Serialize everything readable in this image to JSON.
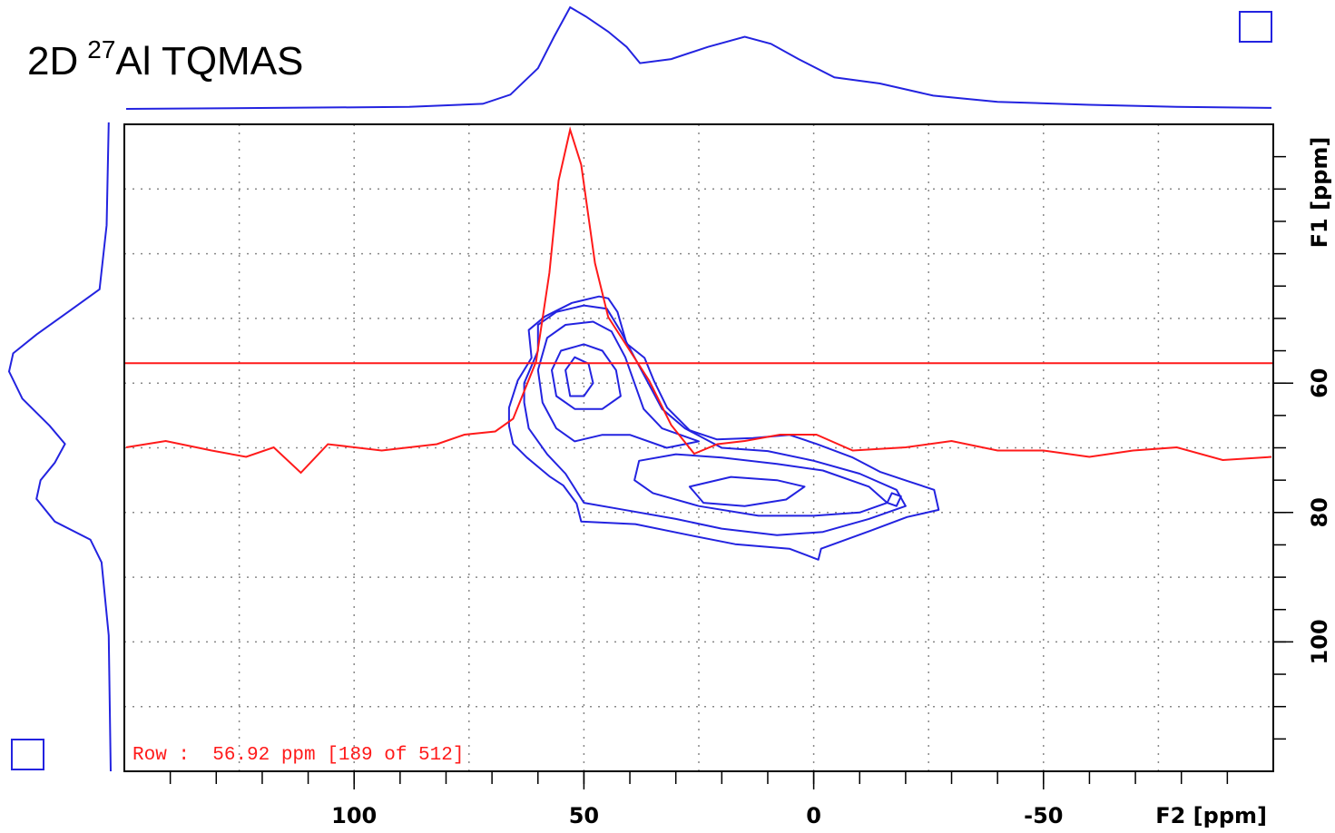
{
  "chart_data": {
    "type": "contour",
    "title": {
      "text1": "2D",
      "sup": "27",
      "text2": "Al TQMAS"
    },
    "x_label": "F2 [ppm]",
    "y_label": "F1 [ppm]",
    "xlim": [
      150,
      -100
    ],
    "ylim": [
      20,
      120
    ],
    "xticks": [
      100,
      50,
      0,
      -50
    ],
    "yticks": [
      60,
      80,
      100
    ],
    "xgrid": [
      125,
      75,
      25,
      -25,
      -75
    ],
    "ygrid": [
      30,
      40,
      50,
      70,
      90,
      110
    ],
    "xminor": 10,
    "yminor": 5,
    "grid": true,
    "contour_color": "#2323e0",
    "projection_color": "#2323e0",
    "row_color": "#ff1a1a",
    "row_ppm": 56.92,
    "row_label": "Row :  56.92 ppm [189 of 512]",
    "projection_f2": {
      "x": [
        149.6,
        117.5,
        88,
        72,
        66,
        60,
        56.5,
        53,
        49.6,
        44.7,
        40.7,
        37.8,
        31,
        23,
        15,
        9.3,
        3.3,
        -4.5,
        -14.4,
        -26,
        -40,
        -60,
        -79,
        -99.6
      ],
      "values": [
        0,
        1,
        2,
        5,
        14,
        40,
        71,
        100,
        91,
        76,
        61,
        45,
        49,
        61,
        71,
        64,
        49,
        31,
        25,
        13,
        7,
        4,
        2,
        1
      ]
    },
    "projection_f1": {
      "y": [
        19.7,
        35.6,
        45.5,
        49,
        52.5,
        55.4,
        58.2,
        62.4,
        66.6,
        69.4,
        72.3,
        75,
        77.9,
        81.4,
        84.2,
        87.7,
        99,
        120
      ],
      "values": [
        2,
        4,
        11,
        42,
        73,
        96,
        100,
        87,
        60,
        45,
        55,
        69,
        73,
        55,
        20,
        9,
        2,
        0
      ]
    },
    "row_slice": {
      "x": [
        149.6,
        141,
        131,
        123.5,
        117.5,
        111.6,
        105.7,
        94,
        82,
        76,
        69.3,
        65.4,
        60.4,
        57.5,
        55.5,
        53,
        50.6,
        47.6,
        44.7,
        40.7,
        35.8,
        31,
        26,
        21,
        15,
        7.3,
        -0.6,
        -8.5,
        -20,
        -30,
        -40,
        -50,
        -60,
        -69.5,
        -79,
        -89,
        -99.6
      ],
      "values": [
        0,
        2,
        -1,
        -3,
        0,
        -8,
        1,
        -1,
        1,
        4,
        5,
        9,
        27,
        55,
        84,
        100,
        89,
        58,
        41,
        32,
        21,
        7,
        -2,
        1,
        2,
        4,
        4,
        -1,
        0,
        2,
        -1,
        -1,
        -3,
        -1,
        0,
        -4,
        -3
      ]
    },
    "contours": [
      {
        "x": [
          66.3,
          64.4,
          61.4,
          62.0,
          58.5,
          52.6,
          46.7,
          44.7,
          42.7,
          40.7,
          36.8,
          34.8,
          31.9,
          27.0,
          21.1,
          13.2,
          5.3,
          -0.6,
          -8.5,
          -14.4,
          -20.3,
          -26.2,
          -27.2,
          -20.3,
          -12.4,
          -1.6,
          -1.0,
          5.3,
          17.1,
          27.0,
          38.8,
          50.6,
          51.6,
          54.5,
          57.5,
          62.4,
          65.4,
          66.3
        ],
        "y": [
          63.8,
          59.6,
          56.1,
          51.8,
          49.7,
          47.6,
          46.6,
          46.9,
          49.0,
          53.9,
          56.1,
          59.6,
          63.8,
          67.3,
          68.7,
          68.5,
          68.0,
          69.4,
          71.5,
          73.7,
          75.1,
          76.5,
          79.6,
          80.7,
          82.8,
          85.6,
          87.3,
          85.6,
          84.9,
          83.5,
          81.8,
          81.4,
          78.6,
          75.8,
          74.4,
          71.5,
          69.4,
          66.6
        ]
      },
      {
        "x": [
          63,
          60,
          60,
          56,
          50,
          45,
          42,
          39,
          36,
          33,
          28,
          20,
          10,
          0,
          -10,
          -18,
          -20,
          -12,
          -2,
          8,
          20,
          30,
          42,
          50,
          54,
          58,
          62,
          63
        ],
        "y": [
          60,
          55,
          51,
          49,
          48,
          48.5,
          52,
          56,
          60,
          64,
          67,
          70,
          70.5,
          72,
          74,
          76.5,
          79,
          81,
          83,
          83.5,
          82.5,
          81,
          79.5,
          78.5,
          74,
          71,
          67,
          63
        ]
      },
      {
        "x": [
          60,
          58,
          54,
          48,
          44,
          41,
          39,
          37,
          33,
          25,
          32,
          40,
          46,
          52,
          56,
          59
        ],
        "y": [
          58,
          53,
          51,
          50.5,
          52,
          56,
          60,
          64,
          67,
          69,
          70,
          68,
          68,
          69,
          67,
          63
        ]
      },
      {
        "x": [
          57,
          55,
          50,
          46,
          43,
          42,
          46,
          52,
          56
        ],
        "y": [
          58,
          55,
          54,
          55,
          58,
          62,
          64,
          64,
          62
        ]
      },
      {
        "x": [
          54,
          52,
          49,
          48,
          50,
          53
        ],
        "y": [
          58,
          56,
          57,
          60,
          62,
          62
        ]
      },
      {
        "x": [
          38,
          30,
          20,
          8,
          -2,
          -12,
          -16,
          -10,
          0,
          12,
          25,
          35,
          39
        ],
        "y": [
          72,
          71,
          71.5,
          72.5,
          73.5,
          76,
          78.5,
          80,
          80.5,
          80.5,
          79,
          77,
          75
        ]
      },
      {
        "x": [
          27,
          18,
          8,
          2,
          6,
          15,
          24
        ],
        "y": [
          76,
          74.5,
          75,
          76,
          78,
          79,
          78.5
        ]
      },
      {
        "x": [
          -17,
          -19,
          -18,
          -16
        ],
        "y": [
          77,
          77.5,
          79,
          78.5
        ]
      }
    ]
  }
}
